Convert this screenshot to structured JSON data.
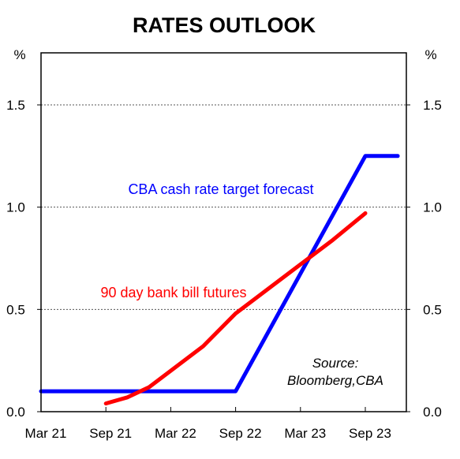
{
  "chart_data": {
    "type": "line",
    "title": "RATES OUTLOOK",
    "y_unit_left": "%",
    "y_unit_right": "%",
    "ylim": [
      0,
      1.5
    ],
    "y_ticks": [
      {
        "value": 0,
        "label": "0.0"
      },
      {
        "value": 0.5,
        "label": "0.5"
      },
      {
        "value": 1.0,
        "label": "1.0"
      },
      {
        "value": 1.5,
        "label": "1.5"
      }
    ],
    "x_range": [
      "2021-03",
      "2024-01"
    ],
    "x_ticks": [
      {
        "date": "2021-03",
        "label": "Mar 21"
      },
      {
        "date": "2021-09",
        "label": "Sep 21"
      },
      {
        "date": "2022-03",
        "label": "Mar 22"
      },
      {
        "date": "2022-09",
        "label": "Sep 22"
      },
      {
        "date": "2023-03",
        "label": "Mar 23"
      },
      {
        "date": "2023-09",
        "label": "Sep 23"
      }
    ],
    "grid": "horizontal dotted",
    "series": [
      {
        "name": "CBA cash rate target forecast",
        "color": "#0000ff",
        "points": [
          {
            "x": "2021-03",
            "y": 0.1
          },
          {
            "x": "2022-09",
            "y": 0.1
          },
          {
            "x": "2023-09",
            "y": 1.25
          },
          {
            "x": "2023-12",
            "y": 1.25
          }
        ]
      },
      {
        "name": "90 day bank bill futures",
        "color": "#ff0000",
        "points": [
          {
            "x": "2021-09",
            "y": 0.04
          },
          {
            "x": "2021-11",
            "y": 0.07
          },
          {
            "x": "2022-01",
            "y": 0.12
          },
          {
            "x": "2022-03",
            "y": 0.2
          },
          {
            "x": "2022-06",
            "y": 0.32
          },
          {
            "x": "2022-09",
            "y": 0.48
          },
          {
            "x": "2022-12",
            "y": 0.6
          },
          {
            "x": "2023-03",
            "y": 0.72
          },
          {
            "x": "2023-06",
            "y": 0.84
          },
          {
            "x": "2023-09",
            "y": 0.97
          }
        ]
      }
    ],
    "annotations": {
      "source": [
        "Source:",
        "Bloomberg,CBA"
      ]
    }
  }
}
